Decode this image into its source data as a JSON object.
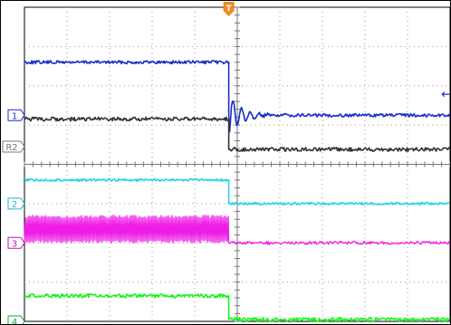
{
  "chart_data": {
    "type": "line",
    "title": "",
    "xlabel": "",
    "ylabel": "",
    "grid": true,
    "grid_divisions": {
      "x": 10,
      "y": 8
    },
    "trigger_position_div": 4.8,
    "trigger": {
      "label": "T",
      "color": "#f08a24"
    },
    "channel_markers": [
      {
        "id": "ch1",
        "label": "1",
        "level_div": 2.75,
        "color": "#1a2fc4"
      },
      {
        "id": "ref2",
        "label": "R2",
        "level_div": 3.55,
        "color": "#7a7a7a"
      },
      {
        "id": "ch2",
        "label": "2",
        "level_div": 5.0,
        "color": "#1fb5c9"
      },
      {
        "id": "ch3",
        "label": "3",
        "level_div": 6.0,
        "color": "#b01ca8"
      },
      {
        "id": "ch4",
        "label": "4",
        "level_div": 8.0,
        "color": "#15a83a"
      }
    ],
    "offscreen_marker": {
      "label": "←",
      "level_div": 2.2,
      "color": "#1a2fc4"
    },
    "series": [
      {
        "id": "blue",
        "color": "#1a2fc4",
        "before_level_div": 1.4,
        "after_level_div": 2.75,
        "noise_div": 0.04,
        "ringing": {
          "amplitude_div": 0.55,
          "decay_div": 0.3,
          "period_div": 0.2
        }
      },
      {
        "id": "gray",
        "color": "#333333",
        "before_level_div": 2.85,
        "after_level_div": 3.62,
        "noise_div": 0.05
      },
      {
        "id": "cyan",
        "color": "#22d3e6",
        "before_level_div": 4.4,
        "after_level_div": 5.0,
        "noise_div": 0.03
      },
      {
        "id": "magenta",
        "color": "#ee1de6",
        "before_level_div": 5.95,
        "after_level_div": 6.0,
        "band_before": {
          "low_div": 5.3,
          "high_div": 6.0
        },
        "noise_div": 0.04
      },
      {
        "id": "green",
        "color": "#1cf220",
        "before_level_div": 7.35,
        "after_level_div": 7.95,
        "noise_div": 0.05
      }
    ]
  }
}
